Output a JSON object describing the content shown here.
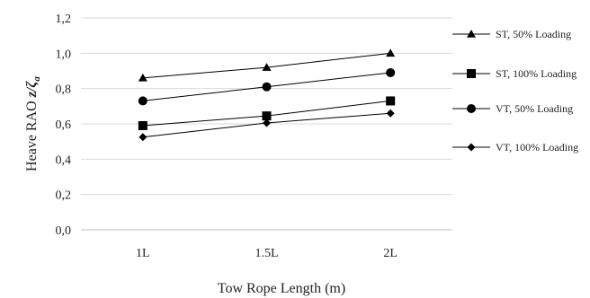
{
  "chart_data": {
    "type": "line",
    "categories": [
      "1L",
      "1.5L",
      "2L"
    ],
    "series": [
      {
        "name": "ST, 50% Loading",
        "values": [
          0.86,
          0.92,
          1.0
        ],
        "marker": "triangle"
      },
      {
        "name": "ST, 100% Loading",
        "values": [
          0.59,
          0.645,
          0.73
        ],
        "marker": "square"
      },
      {
        "name": "VT, 50% Loading",
        "values": [
          0.73,
          0.81,
          0.89
        ],
        "marker": "circle"
      },
      {
        "name": "VT, 100% Loading",
        "values": [
          0.525,
          0.605,
          0.66
        ],
        "marker": "diamond"
      }
    ],
    "xlabel": "Tow Rope Length (m)",
    "ylabel_main": "Heave RAO",
    "ylabel_symbol": "z/ζ",
    "ylabel_subscript": "a",
    "ylim": [
      0,
      1.2
    ],
    "yticks": [
      "0,0",
      "0,2",
      "0,4",
      "0,6",
      "0,8",
      "1,0",
      "1,2"
    ],
    "grid": true,
    "legend_position": "right",
    "colors": {
      "series": "#000000",
      "grid": "#d9d9d9"
    }
  }
}
